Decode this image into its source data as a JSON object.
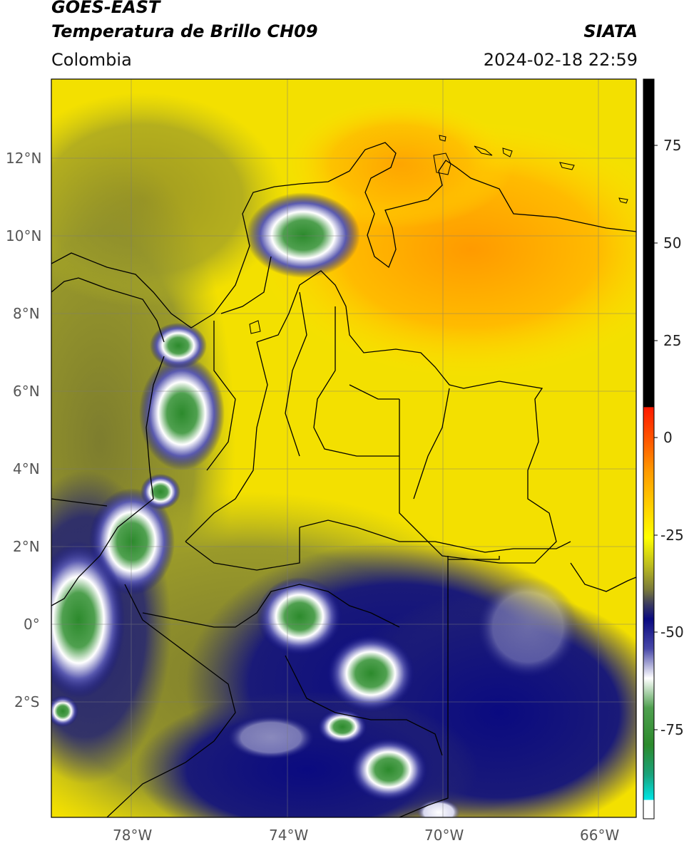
{
  "header": {
    "satellite": "GOES-EAST",
    "product": "Temperatura de Brillo CH09",
    "org": "SIATA",
    "region": "Colombia",
    "datetime": "2024-02-18 22:59"
  },
  "map": {
    "lat_labels": [
      "12°N",
      "10°N",
      "8°N",
      "6°N",
      "4°N",
      "2°N",
      "0°",
      "2°S"
    ],
    "lon_labels": [
      "78°W",
      "74°W",
      "70°W",
      "66°W"
    ]
  },
  "colorbar": {
    "ticks": [
      "75",
      "50",
      "25",
      "0",
      "-25",
      "-50",
      "-75"
    ],
    "colors": {
      "black": "#000000",
      "red": "#ff1a00",
      "orange": "#ff9a00",
      "yellow": "#ffff00",
      "olive": "#8f8f2a",
      "navy": "#0a0a80",
      "white": "#ffffff",
      "green": "#2c8a2c",
      "cyan": "#00e5e5"
    }
  }
}
